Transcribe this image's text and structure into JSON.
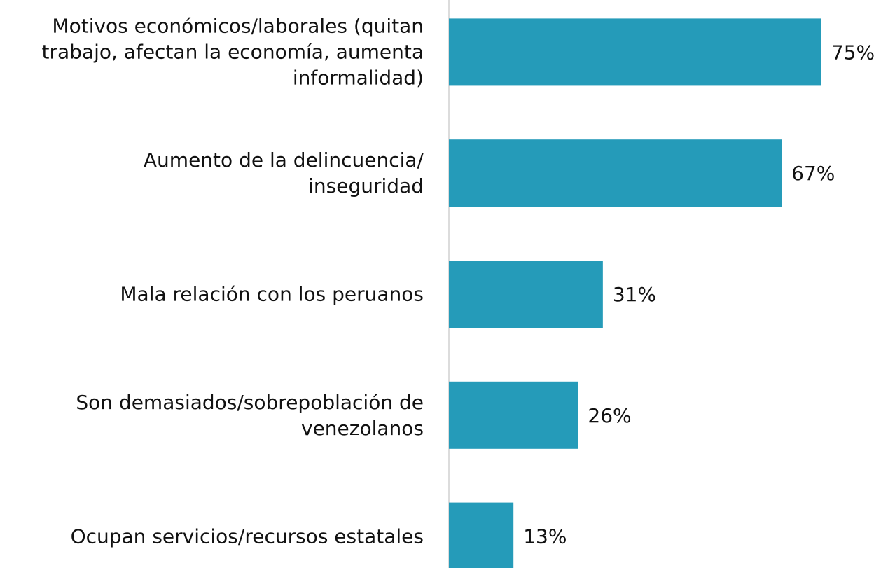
{
  "chart_data": {
    "type": "bar",
    "orientation": "horizontal",
    "categories": [
      "Motivos económicos/laborales (quitan\ntrabajo, afectan la economía, aumenta\ninformalidad)",
      "Aumento de la delincuencia/\ninseguridad",
      "Mala relación con los peruanos",
      "Son demasiados/sobrepoblación de\nvenezolanos",
      "Ocupan servicios/recursos estatales"
    ],
    "values": [
      75,
      67,
      31,
      26,
      13
    ],
    "value_labels": [
      "75%",
      "67%",
      "31%",
      "26%",
      "13%"
    ],
    "color": "#259bb9",
    "xlim": [
      0,
      87
    ]
  }
}
